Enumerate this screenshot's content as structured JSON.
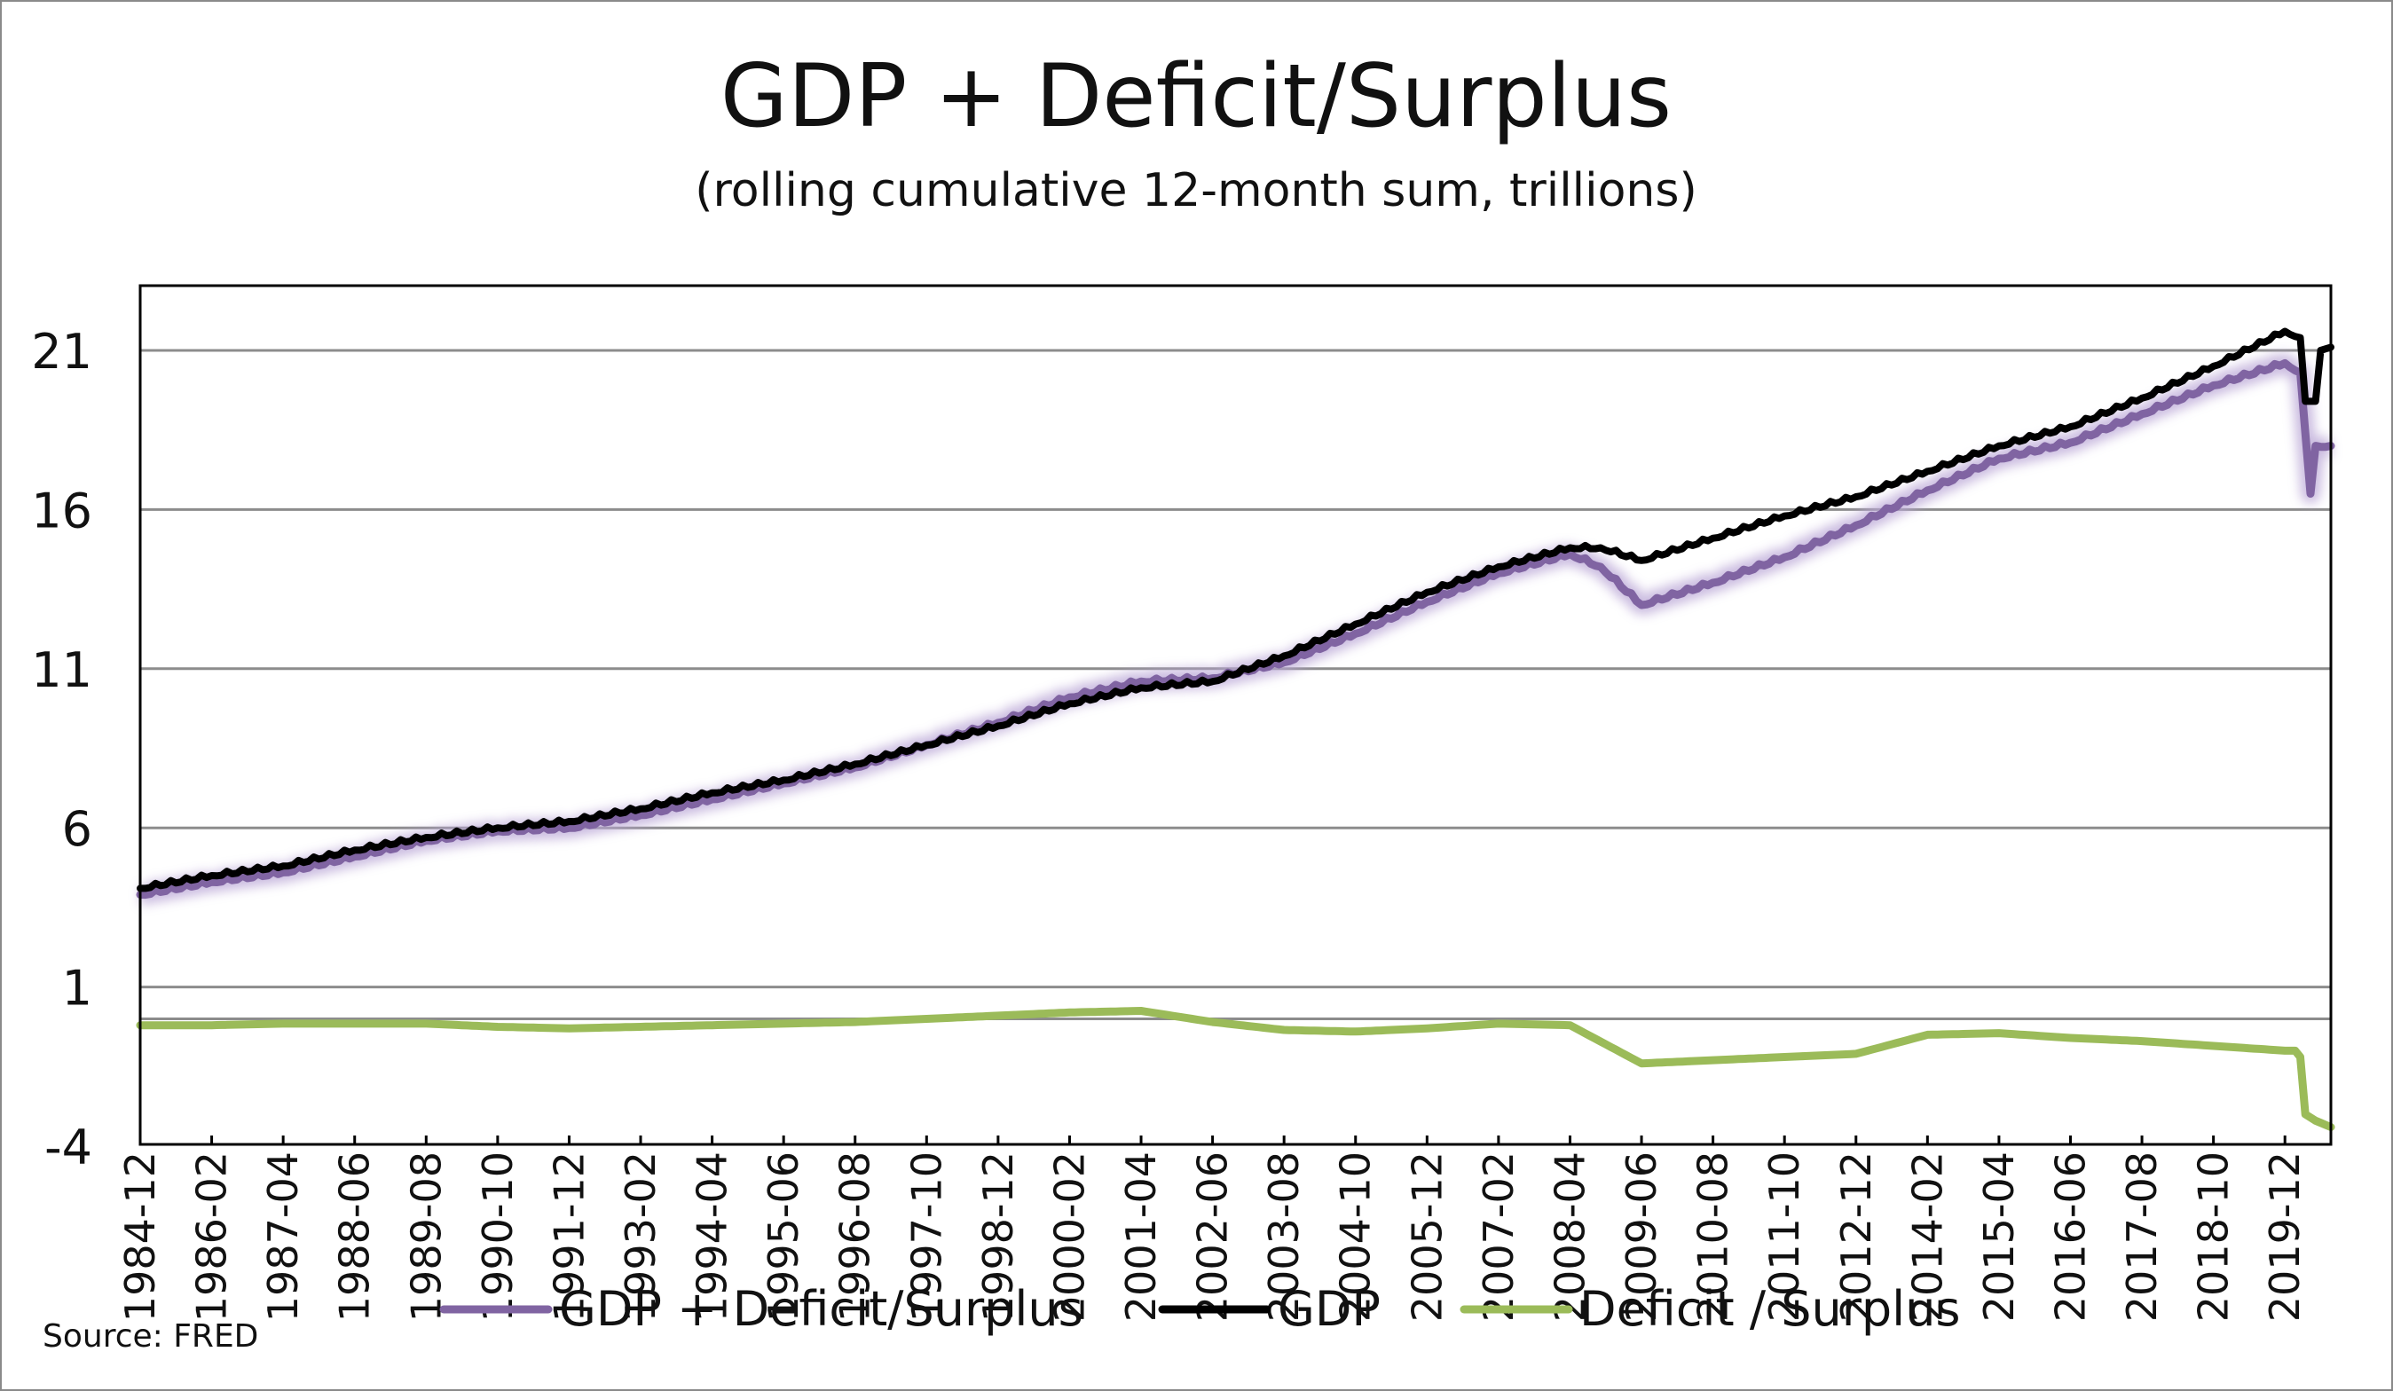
{
  "chart_data": {
    "type": "line",
    "title": "GDP + Deficit/Surplus",
    "subtitle": "(rolling cumulative 12-month sum, trillions)",
    "source": "Source: FRED",
    "xlabel": "",
    "ylabel": "",
    "ylim": [
      -4,
      23
    ],
    "yticks": [
      21,
      16,
      11,
      6,
      1,
      -4
    ],
    "grid": true,
    "legend_position": "bottom-center",
    "x_start": "1984-12",
    "x_end": "2020-09",
    "x_tick_labels": [
      "1984-12",
      "1986-02",
      "1987-04",
      "1988-06",
      "1989-08",
      "1990-10",
      "1991-12",
      "1993-02",
      "1994-04",
      "1995-06",
      "1996-08",
      "1997-10",
      "1998-12",
      "2000-02",
      "2001-04",
      "2002-06",
      "2003-08",
      "2004-10",
      "2005-12",
      "2007-02",
      "2008-04",
      "2009-06",
      "2010-08",
      "2011-10",
      "2012-12",
      "2014-02",
      "2015-04",
      "2016-06",
      "2017-08",
      "2018-10",
      "2019-12"
    ],
    "series": [
      {
        "name": "GDP + Deficit/Surplus",
        "color": "#8064a2",
        "points": [
          [
            "1984-12",
            3.9
          ],
          [
            "1986-02",
            4.3
          ],
          [
            "1987-04",
            4.6
          ],
          [
            "1988-06",
            5.1
          ],
          [
            "1989-08",
            5.6
          ],
          [
            "1990-10",
            5.9
          ],
          [
            "1991-12",
            6.0
          ],
          [
            "1993-02",
            6.4
          ],
          [
            "1994-04",
            6.9
          ],
          [
            "1995-06",
            7.4
          ],
          [
            "1996-08",
            7.9
          ],
          [
            "1997-10",
            8.6
          ],
          [
            "1998-12",
            9.3
          ],
          [
            "2000-02",
            10.1
          ],
          [
            "2001-04",
            10.6
          ],
          [
            "2002-06",
            10.7
          ],
          [
            "2003-08",
            11.2
          ],
          [
            "2004-10",
            12.1
          ],
          [
            "2005-12",
            13.1
          ],
          [
            "2007-02",
            14.0
          ],
          [
            "2008-04",
            14.6
          ],
          [
            "2008-10",
            14.2
          ],
          [
            "2009-06",
            13.0
          ],
          [
            "2010-08",
            13.7
          ],
          [
            "2011-10",
            14.5
          ],
          [
            "2012-12",
            15.5
          ],
          [
            "2014-02",
            16.6
          ],
          [
            "2015-04",
            17.6
          ],
          [
            "2016-06",
            18.1
          ],
          [
            "2017-08",
            19.0
          ],
          [
            "2018-10",
            19.9
          ],
          [
            "2019-12",
            20.6
          ],
          [
            "2020-03",
            20.3
          ],
          [
            "2020-05",
            16.5
          ],
          [
            "2020-06",
            18.0
          ],
          [
            "2020-09",
            18.0
          ]
        ]
      },
      {
        "name": "GDP",
        "color": "#000000",
        "points": [
          [
            "1984-12",
            4.1
          ],
          [
            "1986-02",
            4.5
          ],
          [
            "1987-04",
            4.8
          ],
          [
            "1988-06",
            5.3
          ],
          [
            "1989-08",
            5.7
          ],
          [
            "1990-10",
            6.0
          ],
          [
            "1991-12",
            6.2
          ],
          [
            "1993-02",
            6.6
          ],
          [
            "1994-04",
            7.1
          ],
          [
            "1995-06",
            7.5
          ],
          [
            "1996-08",
            8.0
          ],
          [
            "1997-10",
            8.6
          ],
          [
            "1998-12",
            9.2
          ],
          [
            "2000-02",
            9.9
          ],
          [
            "2001-04",
            10.4
          ],
          [
            "2002-06",
            10.6
          ],
          [
            "2003-08",
            11.4
          ],
          [
            "2004-10",
            12.4
          ],
          [
            "2005-12",
            13.4
          ],
          [
            "2007-02",
            14.2
          ],
          [
            "2008-04",
            14.8
          ],
          [
            "2008-10",
            14.8
          ],
          [
            "2009-06",
            14.4
          ],
          [
            "2010-08",
            15.1
          ],
          [
            "2011-10",
            15.8
          ],
          [
            "2012-12",
            16.4
          ],
          [
            "2014-02",
            17.2
          ],
          [
            "2015-04",
            18.0
          ],
          [
            "2016-06",
            18.6
          ],
          [
            "2017-08",
            19.5
          ],
          [
            "2018-10",
            20.5
          ],
          [
            "2019-12",
            21.6
          ],
          [
            "2020-03",
            21.4
          ],
          [
            "2020-04",
            19.4
          ],
          [
            "2020-06",
            19.4
          ],
          [
            "2020-07",
            21.0
          ],
          [
            "2020-09",
            21.1
          ]
        ]
      },
      {
        "name": "Deficit / Surplus",
        "color": "#9bbb59",
        "points": [
          [
            "1984-12",
            -0.2
          ],
          [
            "1986-02",
            -0.2
          ],
          [
            "1987-04",
            -0.15
          ],
          [
            "1988-06",
            -0.15
          ],
          [
            "1989-08",
            -0.15
          ],
          [
            "1990-10",
            -0.25
          ],
          [
            "1991-12",
            -0.3
          ],
          [
            "1993-02",
            -0.25
          ],
          [
            "1994-04",
            -0.2
          ],
          [
            "1995-06",
            -0.15
          ],
          [
            "1996-08",
            -0.1
          ],
          [
            "1997-10",
            0.0
          ],
          [
            "1998-12",
            0.1
          ],
          [
            "2000-02",
            0.2
          ],
          [
            "2001-04",
            0.25
          ],
          [
            "2002-06",
            -0.1
          ],
          [
            "2003-08",
            -0.35
          ],
          [
            "2004-10",
            -0.4
          ],
          [
            "2005-12",
            -0.3
          ],
          [
            "2007-02",
            -0.15
          ],
          [
            "2008-04",
            -0.2
          ],
          [
            "2009-06",
            -1.4
          ],
          [
            "2010-08",
            -1.3
          ],
          [
            "2011-10",
            -1.2
          ],
          [
            "2012-12",
            -1.1
          ],
          [
            "2014-02",
            -0.5
          ],
          [
            "2015-04",
            -0.45
          ],
          [
            "2016-06",
            -0.6
          ],
          [
            "2017-08",
            -0.7
          ],
          [
            "2018-10",
            -0.85
          ],
          [
            "2019-12",
            -1.0
          ],
          [
            "2020-02",
            -1.0
          ],
          [
            "2020-03",
            -1.2
          ],
          [
            "2020-04",
            -3.0
          ],
          [
            "2020-06",
            -3.2
          ],
          [
            "2020-09",
            -3.4
          ]
        ]
      }
    ]
  }
}
